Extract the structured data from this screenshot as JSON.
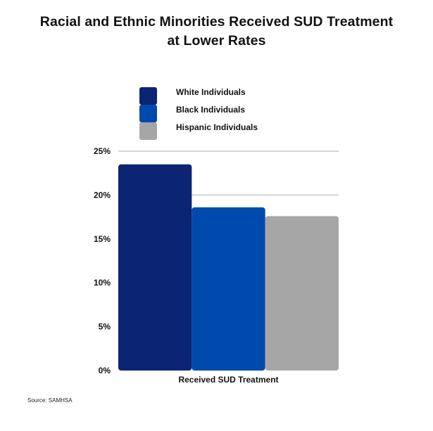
{
  "chart_data": {
    "type": "bar",
    "title_lines": [
      "Racial and Ethnic Minorities Received SUD Treatment",
      "at Lower Rates"
    ],
    "categories": [
      "Received SUD Treatment"
    ],
    "series": [
      {
        "name": "White Individuals",
        "values": [
          23.5
        ],
        "color": "#0b2473"
      },
      {
        "name": "Black Individuals",
        "values": [
          18.6
        ],
        "color": "#004aad"
      },
      {
        "name": "Hispanic Individuals",
        "values": [
          17.6
        ],
        "color": "#a6a6a6"
      }
    ],
    "ylim": [
      0,
      25
    ],
    "yticks": [
      "0%",
      "5%",
      "10%",
      "15%",
      "20%",
      "25%"
    ],
    "ytick_values": [
      0,
      5,
      10,
      15,
      20,
      25
    ],
    "grid": true,
    "grid_color": "#c8c8c8",
    "legend_position": "top-left",
    "xlabel": "",
    "ylabel": ""
  },
  "source": "Source: SAMHSA"
}
